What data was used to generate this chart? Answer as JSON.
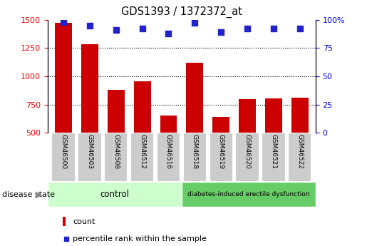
{
  "title": "GDS1393 / 1372372_at",
  "samples": [
    "GSM46500",
    "GSM46503",
    "GSM46508",
    "GSM46512",
    "GSM46516",
    "GSM46518",
    "GSM46519",
    "GSM46520",
    "GSM46521",
    "GSM46522"
  ],
  "counts": [
    1470,
    1285,
    880,
    955,
    650,
    1120,
    640,
    800,
    805,
    810
  ],
  "percentiles": [
    98,
    95,
    91,
    92,
    88,
    97,
    89,
    92,
    92,
    92
  ],
  "count_min": 500,
  "count_max": 1500,
  "right_axis_ticks": [
    0,
    25,
    50,
    75,
    100
  ],
  "left_axis_ticks": [
    500,
    750,
    1000,
    1250,
    1500
  ],
  "grid_values": [
    750,
    1000,
    1250
  ],
  "bar_color": "#cc0000",
  "dot_color": "#2222cc",
  "control_label": "control",
  "disease_label": "diabetes-induced erectile dysfunction",
  "disease_state_label": "disease state",
  "legend_count_label": "count",
  "legend_percentile_label": "percentile rank within the sample",
  "control_color": "#ccffcc",
  "disease_color": "#66cc66",
  "tick_bg_color": "#cccccc",
  "bg_color": "#ffffff"
}
